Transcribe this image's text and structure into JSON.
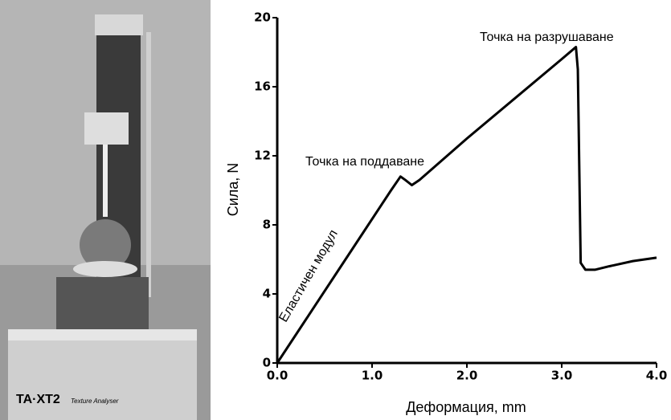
{
  "photo": {
    "brand": "TA·XT2",
    "subtitle": "Texture Analyser"
  },
  "chart_data": {
    "type": "line",
    "xlabel": "Деформация, mm",
    "ylabel": "Сила, N",
    "annotations": [
      "Еластичен модул",
      "Точка на поддаване",
      "Точка на разрушаване"
    ],
    "x": [
      0,
      0.3,
      0.6,
      0.9,
      1.2,
      1.3,
      1.35,
      1.42,
      1.5,
      2.0,
      2.5,
      3.0,
      3.15,
      3.17,
      3.2,
      3.25,
      3.35,
      3.5,
      3.75,
      4.0
    ],
    "values": [
      0,
      2.5,
      5.0,
      7.5,
      10.0,
      10.8,
      10.6,
      10.3,
      10.6,
      13.0,
      15.3,
      17.6,
      18.3,
      17.0,
      5.8,
      5.4,
      5.4,
      5.6,
      5.9,
      6.1
    ],
    "color": "#000000",
    "xlim": [
      0,
      4
    ],
    "ylim": [
      0,
      20
    ],
    "xticks": [
      {
        "value": 0,
        "label": "0.0"
      },
      {
        "value": 1,
        "label": "1.0"
      },
      {
        "value": 2,
        "label": "2.0"
      },
      {
        "value": 3,
        "label": "3.0"
      },
      {
        "value": 4,
        "label": "4.0"
      }
    ],
    "yticks": [
      0,
      4,
      8,
      12,
      16,
      20
    ]
  }
}
